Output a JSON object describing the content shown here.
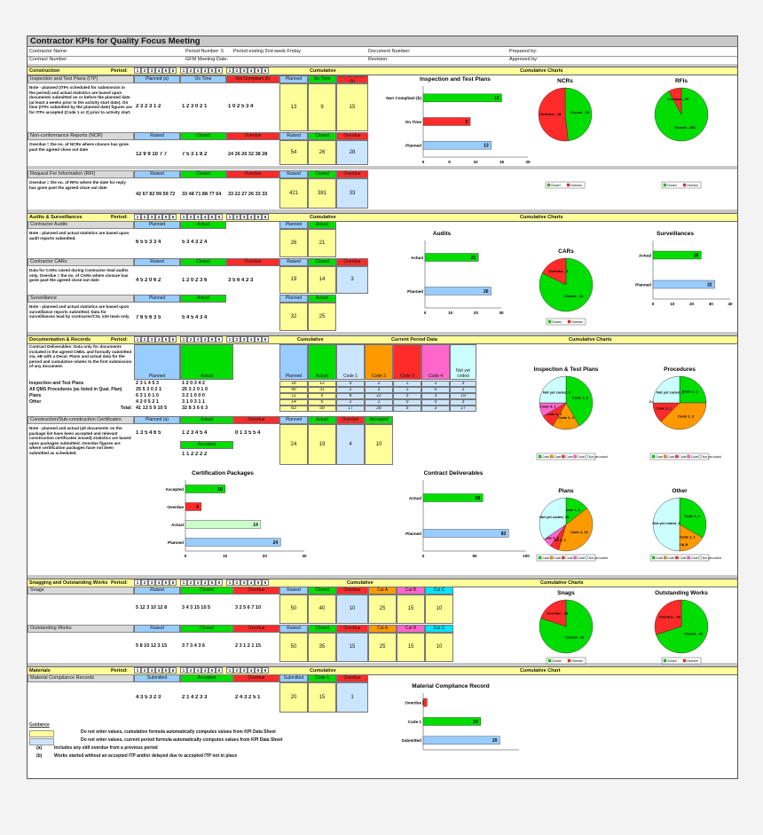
{
  "title": "Contractor KPIs for Quality Focus Meeting",
  "header": {
    "contractor_name": "Contractor Name:",
    "contract_number": "Contract Number:",
    "period_number": "Period Number: 5",
    "period_ending": "Period ending 2nd week Friday",
    "gfm_date": "GFM Meeting Date:",
    "document_number": "Document Number:",
    "revision": "Revision:",
    "prepared_by": "Prepared by:",
    "approved_by": "Approved by:"
  },
  "common": {
    "period": "Period:",
    "cumulative": "Cumulative",
    "cumulative_charts": "Cumulative Charts",
    "cumulative_chart": "Cumulative Chart",
    "period_numbers": [
      "1",
      "2",
      "3",
      "4",
      "5",
      "6"
    ],
    "planned": "Planned",
    "planned_a": "Planned (a)",
    "actual": "Actual",
    "raised": "Raised",
    "closed": "Closed",
    "overdue": "Overdue",
    "on_time": "On Time",
    "not_compliant": "Not Compliant (b)",
    "submitted": "Submitted",
    "accepted": "Accepted",
    "code1": "Code 1",
    "cat_a": "Cat A",
    "cat_b": "Cat B",
    "cat_c": "Cat C"
  },
  "construction": {
    "section": "Construction",
    "itp": {
      "name": "Inspection and Test Plans (ITP)",
      "note": "Note - planned (ITPs scheduled for submission in the period) and actual statistics are based upon documents submitted on or before the planned date (at least 4 weeks prior to the activity start date). On time (ITPs submitted by the planned date) figures are for ITPs accepted (Code 1 or 2) prior to activity start.",
      "planned_digits": "2 3 2 3 1 2",
      "ontime_digits": "1 2 3 0 2 1",
      "notcomp_digits": "1 0 2 5 3 4",
      "cum": [
        "13",
        "9",
        "15"
      ]
    },
    "ncr": {
      "name": "Non-conformance Reports (NCR)",
      "note": "Overdue = the no. of NCRs where closure has gone past the agreed close out date",
      "raised_digits": "12 9 9 10 7 7",
      "closed_digits": "7 5 3 1 8 2",
      "overdue_digits": "24 26 26 32 38 28",
      "cum": [
        "54",
        "26",
        "28"
      ]
    },
    "rfi": {
      "name": "Request For Information (RFI)",
      "note": "Overdue = the no. of RFIs where the date for reply has gone past the agreed close out date",
      "raised_digits": "42 67 82 99 59 72",
      "closed_digits": "33 48 71 88 77 64",
      "overdue_digits": "33 22 27 26 33 33",
      "cum": [
        "421",
        "381",
        "33"
      ]
    }
  },
  "audits": {
    "section": "Audits & Surveillances",
    "contractor_audits": {
      "name": "Contractor Audits",
      "note": "Note - planned and actual statistics are based upon audit reports submitted.",
      "planned_digits": "6 5 5 3 3 4",
      "actual_digits": "5 3 4 3 2 4",
      "cum": [
        "26",
        "21"
      ]
    },
    "cars": {
      "name": "Contractor CARs",
      "note": "Data for CARs raised during Contractor lead audits only. Overdue = the no. of CARs where closure has gone past the agreed close-out date",
      "raised_digits": "4 5 2 0 6 2",
      "closed_digits": "1 2 0 2 3 6",
      "overdue_digits": "3 5 6 4 2 3",
      "cum": [
        "19",
        "14",
        "3"
      ]
    },
    "surveillance": {
      "name": "Surveillance",
      "note": "Note - planned and actual statistics are based upon surveillance reports submitted. Data for surveillances lead by contractor/CSL site team only",
      "planned_digits": "7 6 5 6 3 5",
      "actual_digits": "5 4 5 4 3 4",
      "cum": [
        "32",
        "25"
      ]
    }
  },
  "documentation": {
    "section": "Documentation & Records",
    "current_period_data": "Current Period Data",
    "not_yet_coded": "Not yet coded",
    "code_headers": [
      "Code 1",
      "Code 2",
      "Code 3",
      "Code 4"
    ],
    "deliverables_note": "Contract Deliverables: Data only for documents included in the agreed CMDL and formally submitted via, eB with a Decal. Plans and actual data for the period and cumulative relates to the first submission of any document.",
    "rows": [
      {
        "name": "Inspection and Test Plans",
        "planned": "2 3 1 4 5 3",
        "actual": "1 2 0 3 4 2",
        "cum": [
          "18",
          "12",
          "5",
          "2",
          "1",
          "1",
          "3"
        ]
      },
      {
        "name": "All QMS Procedures (as listed in Qual. Plan)",
        "planned": "25 5 3 0 2 1",
        "actual": "25 3 2 0 1 0",
        "cum": [
          "40",
          "31",
          "2",
          "3",
          "1",
          "0",
          "2"
        ]
      },
      {
        "name": "Plans",
        "planned": "6 3 1 0 1 0",
        "actual": "3 2 1 0 0 0",
        "cum": [
          "11",
          "6",
          "8",
          "22",
          "3",
          "3",
          "19"
        ]
      },
      {
        "name": "Other",
        "planned": "4 2 0 5 2 1",
        "actual": "3 1 0 3 1 1",
        "cum": [
          "14",
          "6",
          "2",
          "1",
          "0",
          "0",
          "3"
        ]
      }
    ],
    "total_label": "Total:",
    "total": {
      "planned": "41 13 5 9 10 5",
      "actual": "32 8 3 6 6 3",
      "cum": [
        "83",
        "58",
        "17",
        "28",
        "5",
        "3",
        "27"
      ]
    },
    "certificates": {
      "name": "Construction/Sub-construction Certificates",
      "note": "Note - planned and actual (all documents on the package list have been accepted and relevant construction certificates issued) statistics are based upon packages submitted. Overdue figures are where certification packages have not been submitted as scheduled.",
      "planned_digits": "1 3 5 4 6 5",
      "actual_digits": "1 2 3 4 5 4",
      "overdue_digits": "0 1 3 5 5 4",
      "accepted_digits": "1 1 2 2 2 2",
      "cum": [
        "24",
        "19",
        "4",
        "10"
      ]
    }
  },
  "snagging": {
    "section": "Snagging and Outstanding Works",
    "snags": {
      "name": "Snags",
      "raised": "5 12 3 10 12 8",
      "closed": "3 4 3 15 10 5",
      "overdue": "3 2 5 6 7 10",
      "cum": [
        "50",
        "40",
        "10",
        "25",
        "15",
        "10"
      ]
    },
    "outstanding": {
      "name": "Outstanding Works",
      "raised": "5 8 10 12 3 15",
      "closed": "3 7 3 4 3 6",
      "overdue": "2 3 1 2 1 15",
      "cum": [
        "50",
        "35",
        "15",
        "25",
        "15",
        "10"
      ]
    }
  },
  "materials": {
    "section": "Materials",
    "records": {
      "name": "Material Compliance Records",
      "submitted": "4 3 5 3 2 3",
      "accepted": "2 1 4 2 3 3",
      "overdue": "2 4 3 2 5 1",
      "cum": [
        "20",
        "15",
        "1"
      ]
    }
  },
  "guidance": {
    "title": "Guidance",
    "line1": "Do not enter values, cumulative formula automatically computes values from KPI Data Sheet",
    "line2": "Do not enter values, current period formula automatically computes values from KPI Data Sheet",
    "a_label": "(a)",
    "a_text": "Includes any still overdue from a previous period",
    "b_label": "(b)",
    "b_text": "Works started without an accepted ITP and/or delayed due to accepted ITP not in place"
  },
  "chart_data": [
    {
      "type": "bar",
      "orientation": "horizontal",
      "title": "Inspection and Test Plans",
      "categories": [
        "Non Compliant (b)",
        "On Time",
        "Planned"
      ],
      "values": [
        15,
        9,
        13
      ],
      "xlim": [
        0,
        20
      ],
      "ticks": [
        0,
        5,
        10,
        15,
        20
      ],
      "colors": [
        "#00dd00",
        "#ff2a2a",
        "#99ccff"
      ]
    },
    {
      "type": "pie",
      "title": "NCRs",
      "labels": [
        "Closed",
        "Overdue"
      ],
      "values": [
        26,
        28
      ],
      "slice_labels": [
        "Closed , 26",
        "Overdue , 28"
      ],
      "legend": [
        "Closed",
        "Overdue"
      ]
    },
    {
      "type": "pie",
      "title": "RFIs",
      "labels": [
        "Closed",
        "Overdue"
      ],
      "values": [
        381,
        33
      ],
      "slice_labels": [
        "Closed , 381",
        "Overdue , 33"
      ],
      "legend": [
        "Closed",
        "Overdue"
      ]
    },
    {
      "type": "bar",
      "orientation": "horizontal",
      "title": "Audits",
      "categories": [
        "Actual",
        "Planned"
      ],
      "values": [
        21,
        26
      ],
      "xlim": [
        0,
        30
      ],
      "ticks": [
        0,
        10,
        20,
        30
      ]
    },
    {
      "type": "pie",
      "title": "CARs",
      "labels": [
        "Closed",
        "Overdue"
      ],
      "values": [
        14,
        3
      ],
      "slice_labels": [
        "Closed , 14",
        "Overdue , 3"
      ],
      "legend": [
        "Closed",
        "Overdue"
      ]
    },
    {
      "type": "bar",
      "orientation": "horizontal",
      "title": "Surveillances",
      "categories": [
        "Actual",
        "Planned"
      ],
      "values": [
        25,
        32
      ],
      "xlim": [
        0,
        40
      ],
      "ticks": [
        0,
        10,
        20,
        30,
        40
      ]
    },
    {
      "type": "pie",
      "title": "Inspection & Test Plans",
      "labels": [
        "Code 1",
        "Code 2",
        "Code 3",
        "Code 4",
        "Not yet coded"
      ],
      "values": [
        5,
        2,
        1,
        1,
        3
      ],
      "slice_labels": [
        "Code 1, 5",
        "Code 2, 2",
        "Code 3, 1",
        "Code 4, 1",
        "Not yet coded, 3"
      ],
      "legend": [
        "Code 1",
        "Code 2",
        "Code 3",
        "Code 4",
        "Not yet coded"
      ]
    },
    {
      "type": "pie",
      "title": "Procedures",
      "labels": [
        "Code 1",
        "Code 2",
        "Code 3",
        "Code 4",
        "Not yet coded"
      ],
      "values": [
        2,
        3,
        1,
        0,
        2
      ],
      "slice_labels": [
        "Code 1, 2",
        "Code 2, 3",
        "Code 3, 1",
        "Code 4, 0",
        "Not yet coded, 2"
      ],
      "legend": [
        "Code 1",
        "Code 2",
        "Code 3",
        "Code 4",
        "Not yet coded"
      ]
    },
    {
      "type": "bar",
      "orientation": "horizontal",
      "title": "Certification Packages",
      "categories": [
        "Accepted",
        "Overdue",
        "Actual",
        "Planned"
      ],
      "values": [
        10,
        4,
        19,
        24
      ],
      "xlim": [
        0,
        30
      ],
      "ticks": [
        0,
        10,
        20,
        30
      ]
    },
    {
      "type": "bar",
      "orientation": "horizontal",
      "title": "Contract Deliverables",
      "categories": [
        "Actual",
        "Planned"
      ],
      "values": [
        58,
        83
      ],
      "xlim": [
        0,
        100
      ],
      "ticks": [
        0,
        50,
        100
      ]
    },
    {
      "type": "pie",
      "title": "Plans",
      "labels": [
        "Code 1",
        "Code 2",
        "Code 3",
        "Code 4",
        "Not yet coded"
      ],
      "values": [
        8,
        22,
        3,
        3,
        19
      ],
      "slice_labels": [
        "Code 1, 8",
        "Code 2, 22",
        "Code 3, 3",
        "Code 4, 3",
        "Not yet coded, 19"
      ],
      "legend": [
        "Code 1",
        "Code 2",
        "Code 3",
        "Code 4",
        "Not yet coded"
      ]
    },
    {
      "type": "pie",
      "title": "Other",
      "labels": [
        "Code 1",
        "Code 2",
        "Code 3",
        "Code 4",
        "Not yet coded"
      ],
      "values": [
        2,
        1,
        0,
        0,
        3
      ],
      "slice_labels": [
        "Code 1, 2",
        "Code 2, 1",
        "Code 3, 0",
        "Code 4, 0",
        "Not yet coded, 3"
      ],
      "legend": [
        "Code 1",
        "Code 2",
        "Code 3",
        "Code 4",
        "Not yet coded"
      ]
    },
    {
      "type": "pie",
      "title": "Snags",
      "labels": [
        "Closed",
        "Overdue"
      ],
      "values": [
        40,
        10
      ],
      "slice_labels": [
        "Closed , 40",
        "Overdue , 10"
      ],
      "legend": [
        "Closed",
        "Overdue"
      ]
    },
    {
      "type": "pie",
      "title": "Outstanding Works",
      "labels": [
        "Closed",
        "Overdue"
      ],
      "values": [
        35,
        15
      ],
      "slice_labels": [
        "Closed , 35",
        "Overdue , 15"
      ],
      "legend": [
        "Closed",
        "Overdue"
      ]
    },
    {
      "type": "bar",
      "orientation": "horizontal",
      "title": "Material Compliance Record",
      "categories": [
        "Overdue",
        "Code 1",
        "Submitted"
      ],
      "values": [
        1,
        15,
        20
      ],
      "xlim": [
        0,
        25
      ],
      "ticks": []
    }
  ],
  "colors": {
    "closed": "#00dd00",
    "overdue": "#ff2a2a",
    "code1": "#00dd00",
    "code2": "#ff9900",
    "code3": "#ff2a2a",
    "code4": "#ff66cc",
    "notcoded": "#ccffff",
    "planned": "#99ccff",
    "actual_light": "#ccffcc"
  }
}
